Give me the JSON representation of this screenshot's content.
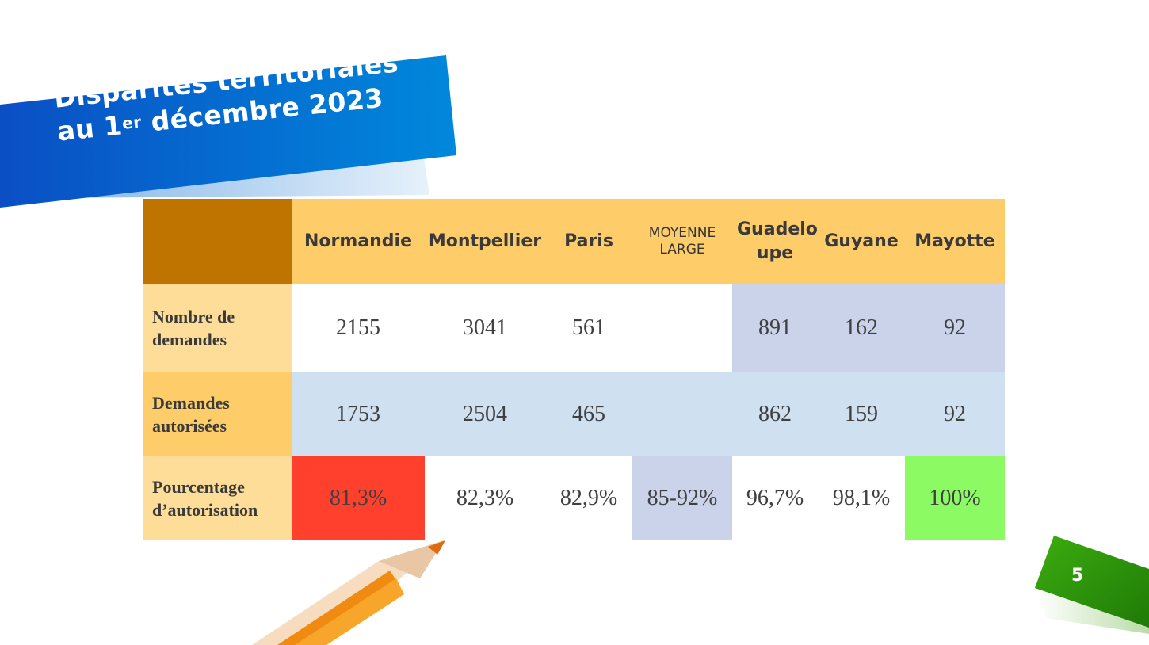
{
  "title": {
    "line1": "Disparités territoriales",
    "line2_prefix": "au 1",
    "line2_sup": "er",
    "line2_suffix": " décembre 2023"
  },
  "table": {
    "columns": [
      "Normandie",
      "Montpellier",
      "Paris",
      "MOYENNE LARGE",
      "Guadelo upe",
      "Guyane",
      "Mayotte"
    ],
    "rows": [
      {
        "label": "Nombre de demandes",
        "values": [
          "2155",
          "3041",
          "561",
          "",
          "891",
          "162",
          "92"
        ]
      },
      {
        "label": "Demandes autorisées",
        "values": [
          "1753",
          "2504",
          "465",
          "",
          "862",
          "159",
          "92"
        ]
      },
      {
        "label": "Pourcentage d’autorisation",
        "values": [
          "81,3%",
          "82,3%",
          "82,9%",
          "85-92%",
          "96,7%",
          "98,1%",
          "100%"
        ]
      }
    ]
  },
  "page_number": "5",
  "colors": {
    "banner_blue": "#0a5cc6",
    "header_orange": "#fecd6a",
    "corner_brown": "#c07400",
    "low_red": "#ff402c",
    "high_green": "#8cfb63",
    "page_tab_green": "#2e9a0c"
  }
}
